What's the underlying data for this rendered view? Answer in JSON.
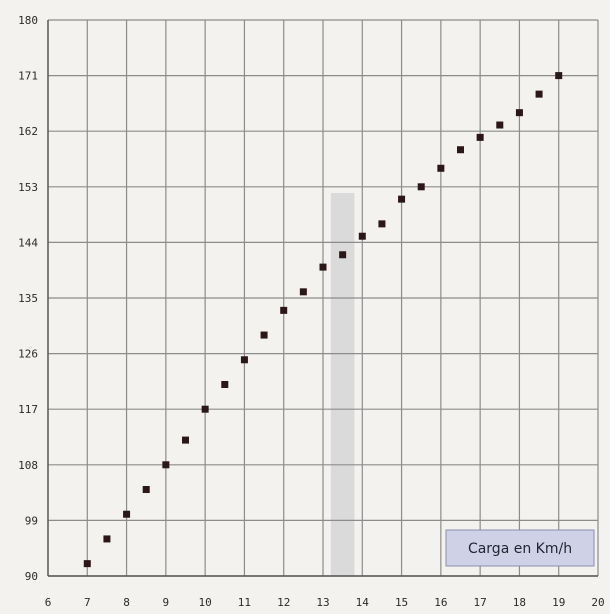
{
  "chart_data": {
    "type": "scatter",
    "title": "",
    "xlabel": "",
    "ylabel": "",
    "xlim": [
      6,
      20
    ],
    "ylim": [
      90,
      180
    ],
    "x_ticks": [
      6,
      7,
      8,
      9,
      10,
      11,
      12,
      13,
      14,
      15,
      16,
      17,
      18,
      19,
      20
    ],
    "y_ticks": [
      90,
      99,
      108,
      117,
      126,
      135,
      144,
      153,
      162,
      171,
      180
    ],
    "grid": true,
    "legend": {
      "text": "Carga en Km/h",
      "placement": "bottom-right"
    },
    "highlight_band": {
      "x_start": 13.2,
      "x_end": 13.8
    },
    "colors": {
      "background": "#f3f2ef",
      "grid": "#8c8c8c",
      "point": "#2b1618",
      "band": "#d7d7d7",
      "legend_bg": "#cfd2e6"
    },
    "series": [
      {
        "x": [
          7,
          7.5,
          8,
          8.5,
          9,
          9.5,
          10,
          10.5,
          11,
          11.5,
          12,
          12.5,
          13,
          13.5,
          14,
          14.5,
          15,
          15.5,
          16,
          16.5,
          17,
          17.5,
          18,
          18.5,
          19
        ],
        "y": [
          92,
          96,
          100,
          104,
          108,
          112,
          117,
          121,
          125,
          129,
          133,
          136,
          140,
          142,
          145,
          147,
          151,
          153,
          156,
          159,
          161,
          163,
          165,
          168,
          171
        ]
      }
    ]
  }
}
